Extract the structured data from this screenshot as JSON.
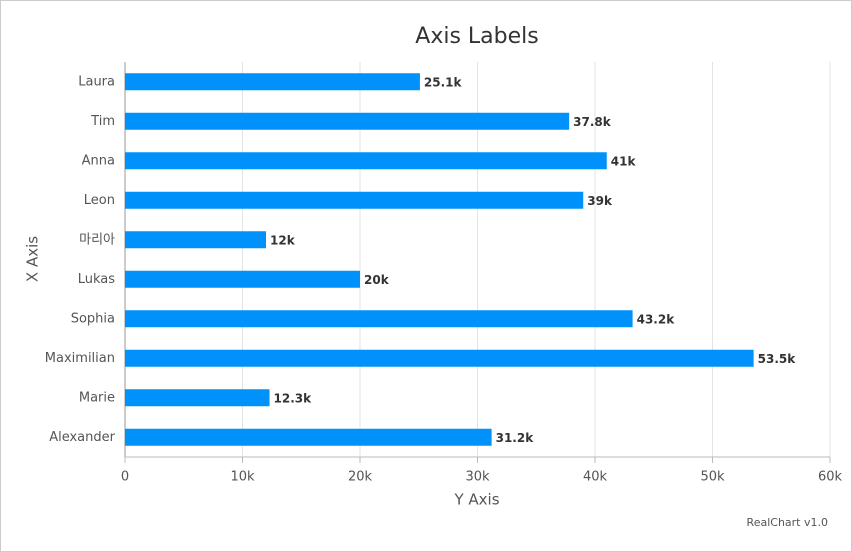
{
  "chart_data": {
    "type": "bar",
    "orientation": "horizontal",
    "title": "Axis Labels",
    "categories": [
      "Laura",
      "Tim",
      "Anna",
      "Leon",
      "마리아",
      "Lukas",
      "Sophia",
      "Maximilian",
      "Marie",
      "Alexander"
    ],
    "values": [
      25100,
      37800,
      41000,
      39000,
      12000,
      20000,
      43200,
      53500,
      12300,
      31200
    ],
    "value_labels": [
      "25.1k",
      "37.8k",
      "41k",
      "39k",
      "12k",
      "20k",
      "43.2k",
      "53.5k",
      "12.3k",
      "31.2k"
    ],
    "color": "#0191fa",
    "xlim": [
      0,
      60000
    ],
    "xticks": [
      0,
      {
        "value": 10000,
        "label": "10k"
      },
      {
        "value": 20000,
        "label": "20k"
      },
      {
        "value": 30000,
        "label": "30k"
      },
      {
        "value": 40000,
        "label": "40k"
      },
      {
        "value": 50000,
        "label": "50k"
      },
      {
        "value": 60000,
        "label": "60k"
      }
    ],
    "value_axis_title": "Y Axis",
    "category_axis_title": "X Axis",
    "grid": true,
    "credit": "RealChart v1.0"
  }
}
